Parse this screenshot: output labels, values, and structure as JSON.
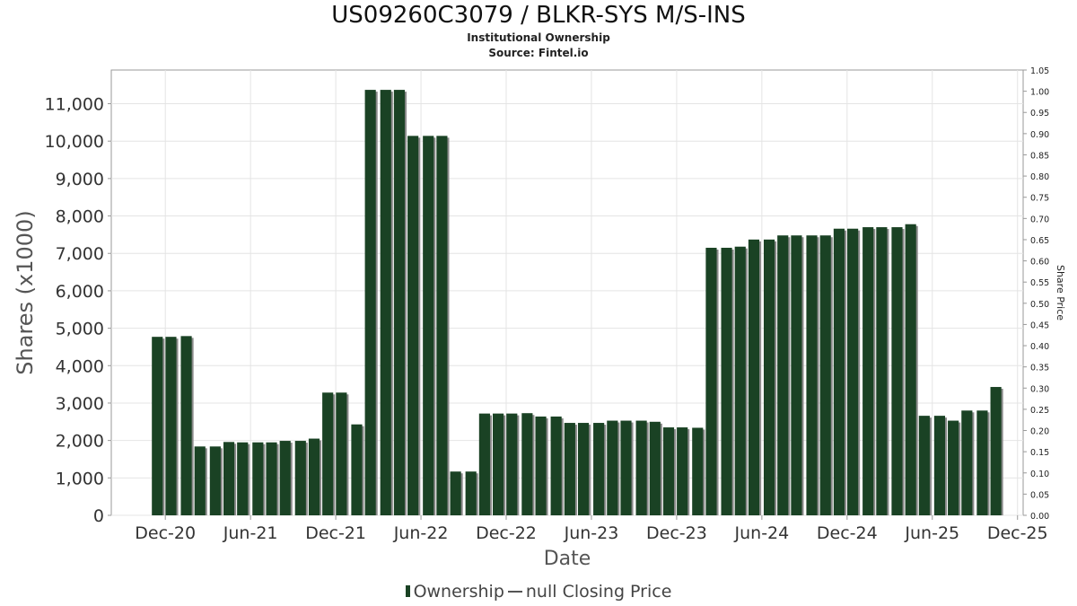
{
  "title": "US09260C3079 / BLKR-SYS M/S-INS",
  "subtitle": "Institutional Ownership",
  "source": "Source: Fintel.io",
  "legend": {
    "series1": "Ownership",
    "series2": "null Closing Price"
  },
  "colors": {
    "bar": "#1a4224",
    "bar_shadow": "#8a8a8a",
    "grid": "#e4e4e4",
    "axis": "#999999"
  },
  "chart_data": {
    "type": "bar",
    "title": "US09260C3079 / BLKR-SYS M/S-INS",
    "xlabel": "Date",
    "ylabel": "Shares (x1000)",
    "y2label": "Share Price",
    "xlim": [
      2020.6,
      2025.95
    ],
    "ylim": [
      0,
      11900
    ],
    "y2lim": [
      0,
      1.05
    ],
    "grid": true,
    "legend_position": "bottom",
    "x_ticks": [
      {
        "label": "Dec-20",
        "x": 2020.917
      },
      {
        "label": "Jun-21",
        "x": 2021.417
      },
      {
        "label": "Dec-21",
        "x": 2021.917
      },
      {
        "label": "Jun-22",
        "x": 2022.417
      },
      {
        "label": "Dec-22",
        "x": 2022.917
      },
      {
        "label": "Jun-23",
        "x": 2023.417
      },
      {
        "label": "Dec-23",
        "x": 2023.917
      },
      {
        "label": "Jun-24",
        "x": 2024.417
      },
      {
        "label": "Dec-24",
        "x": 2024.917
      },
      {
        "label": "Jun-25",
        "x": 2025.417
      },
      {
        "label": "Dec-25",
        "x": 2025.917
      }
    ],
    "y_ticks": [
      0,
      1000,
      2000,
      3000,
      4000,
      5000,
      6000,
      7000,
      8000,
      9000,
      10000,
      11000
    ],
    "y_tick_labels": [
      "0",
      "1,000",
      "2,000",
      "3,000",
      "4,000",
      "5,000",
      "6,000",
      "7,000",
      "8,000",
      "9,000",
      "10,000",
      "11,000"
    ],
    "y2_tick_labels": [
      "0.00",
      "0.05",
      "0.10",
      "0.15",
      "0.20",
      "0.25",
      "0.30",
      "0.35",
      "0.40",
      "0.45",
      "0.50",
      "0.55",
      "0.60",
      "0.65",
      "0.70",
      "0.75",
      "0.80",
      "0.85",
      "0.90",
      "0.95",
      "1.00",
      "1.05"
    ],
    "series": [
      {
        "name": "Ownership",
        "x": [
          2020.87,
          2020.95,
          2021.04,
          2021.12,
          2021.21,
          2021.29,
          2021.37,
          2021.46,
          2021.54,
          2021.62,
          2021.71,
          2021.79,
          2021.87,
          2021.95,
          2022.04,
          2022.12,
          2022.21,
          2022.29,
          2022.37,
          2022.46,
          2022.54,
          2022.62,
          2022.71,
          2022.79,
          2022.87,
          2022.95,
          2023.04,
          2023.12,
          2023.21,
          2023.29,
          2023.37,
          2023.46,
          2023.54,
          2023.62,
          2023.71,
          2023.79,
          2023.87,
          2023.95,
          2024.04,
          2024.12,
          2024.21,
          2024.29,
          2024.37,
          2024.46,
          2024.54,
          2024.62,
          2024.71,
          2024.79,
          2024.87,
          2024.95,
          2025.04,
          2025.12,
          2025.21,
          2025.29,
          2025.37,
          2025.46,
          2025.54,
          2025.62,
          2025.71,
          2025.79
        ],
        "values": [
          4770,
          4770,
          4790,
          1840,
          1840,
          1960,
          1950,
          1950,
          1950,
          1990,
          1990,
          2050,
          3280,
          3280,
          2430,
          11370,
          11370,
          11370,
          10140,
          10140,
          10140,
          1170,
          1170,
          2720,
          2720,
          2720,
          2730,
          2640,
          2640,
          2470,
          2470,
          2470,
          2530,
          2530,
          2530,
          2500,
          2350,
          2350,
          2340,
          7150,
          7150,
          7180,
          7370,
          7370,
          7480,
          7480,
          7480,
          7480,
          7660,
          7660,
          7700,
          7700,
          7700,
          7780,
          2660,
          2660,
          2530,
          2800,
          2800,
          3430
        ]
      }
    ]
  }
}
